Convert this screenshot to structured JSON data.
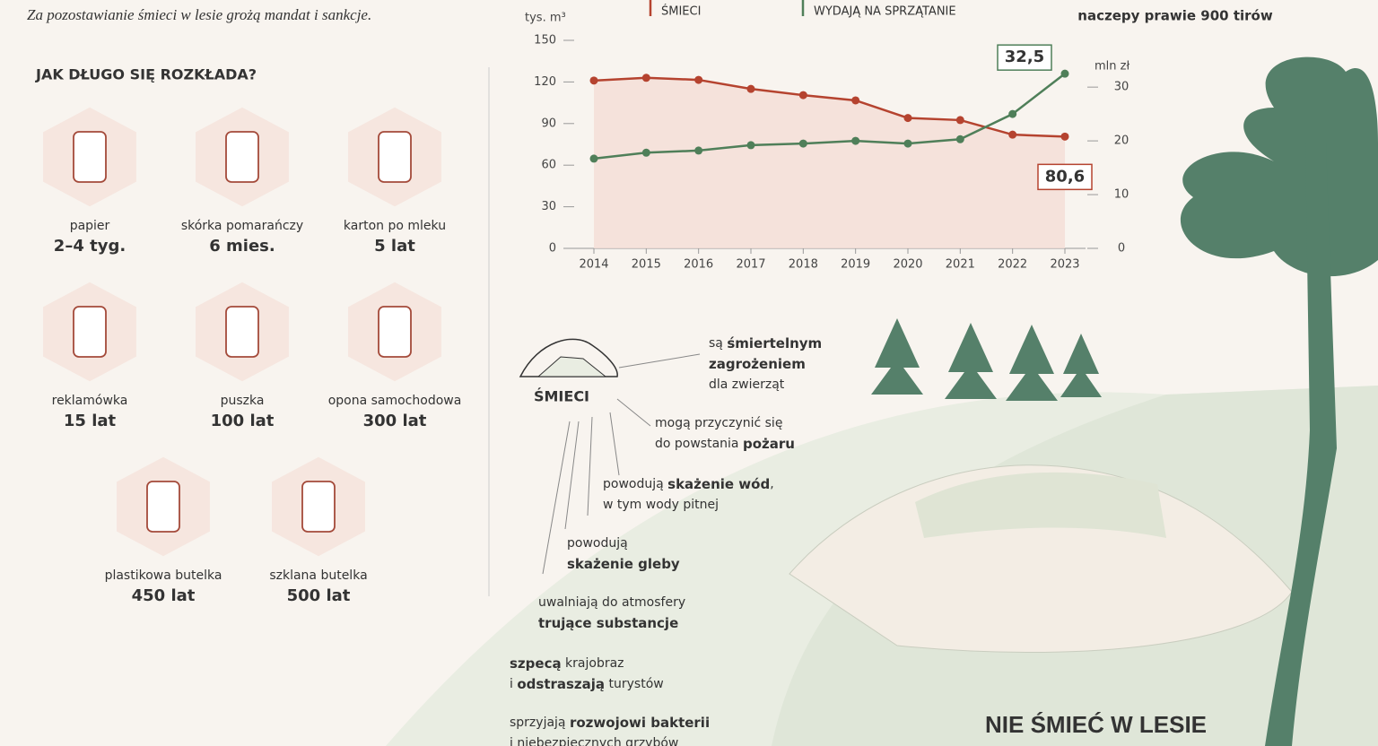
{
  "intro": "Za pozostawianie śmieci w lesie grożą mandat i sankcje.",
  "decomp_title": "JAK DŁUGO SIĘ ROZKŁADA?",
  "items": [
    {
      "name": "papier",
      "time": "2–4 tyg."
    },
    {
      "name": "skórka pomarańczy",
      "time": "6 mies."
    },
    {
      "name": "karton po mleku",
      "time": "5 lat"
    },
    {
      "name": "reklamówka",
      "time": "15 lat"
    },
    {
      "name": "puszka",
      "time": "100 lat"
    },
    {
      "name": "opona samochodowa",
      "time": "300 lat"
    },
    {
      "name": "plastikowa butelka",
      "time": "450 lat"
    },
    {
      "name": "szklana butelka",
      "time": "500 lat"
    }
  ],
  "top_right_note": "naczepy prawie 900 tirów",
  "chart_data": {
    "type": "line",
    "y_label": "tys. m³",
    "y2_label": "mln zł",
    "categories": [
      "2014",
      "2015",
      "2016",
      "2017",
      "2018",
      "2019",
      "2020",
      "2021",
      "2022",
      "2023"
    ],
    "series": [
      {
        "name": "ŚMIECI",
        "color": "#b5432f",
        "values": [
          121,
          123,
          121.5,
          115,
          110.5,
          106.7,
          94,
          92.5,
          82,
          80.6
        ],
        "value_labels": [
          null,
          null,
          null,
          null,
          null,
          null,
          null,
          null,
          null,
          "80,6"
        ]
      },
      {
        "name": "WYDAJĄ NA SPRZĄTANIE",
        "color": "#4f7f59",
        "axis": "y2",
        "values": [
          16.7,
          17.8,
          18.2,
          19.2,
          19.5,
          20,
          19.5,
          20.3,
          25,
          32.5
        ],
        "value_labels": [
          null,
          null,
          null,
          null,
          null,
          null,
          null,
          null,
          null,
          "32,5"
        ]
      }
    ],
    "ylim": [
      0,
      150
    ],
    "yticks": [
      0,
      30,
      60,
      90,
      120,
      150
    ],
    "y2lim": [
      0,
      38.7
    ],
    "y2ticks": [
      0,
      10,
      20,
      30
    ]
  },
  "effects_title": "ŚMIECI",
  "effects": [
    [
      [
        {
          "text": "są "
        },
        {
          "text": "śmiertelnym",
          "bold": true
        }
      ],
      [
        {
          "text": "zagrożeniem",
          "bold": true
        }
      ],
      [
        {
          "text": "dla zwierząt"
        }
      ]
    ],
    [
      [
        {
          "text": "mogą przyczynić się"
        }
      ],
      [
        {
          "text": "do powstania "
        },
        {
          "text": "pożaru",
          "bold": true
        }
      ]
    ],
    [
      [
        {
          "text": "powodują "
        },
        {
          "text": "skażenie wód",
          "bold": true
        },
        {
          "text": ","
        }
      ],
      [
        {
          "text": "w tym wody pitnej"
        }
      ]
    ],
    [
      [
        {
          "text": "powodują"
        }
      ],
      [
        {
          "text": "skażenie gleby",
          "bold": true
        }
      ]
    ],
    [
      [
        {
          "text": "uwalniają do atmosfery"
        }
      ],
      [
        {
          "text": "trujące substancje",
          "bold": true
        }
      ]
    ],
    [
      [
        {
          "text": "szpecą",
          "bold": true
        },
        {
          "text": " krajobraz"
        }
      ],
      [
        {
          "text": "i "
        },
        {
          "text": "odstraszają",
          "bold": true
        },
        {
          "text": " turystów"
        }
      ]
    ],
    [
      [
        {
          "text": "sprzyjają "
        },
        {
          "text": "rozwojowi bakterii",
          "bold": true
        }
      ],
      [
        {
          "text": "i niebezpiecznych grzybów"
        }
      ]
    ]
  ],
  "slogan": "NIE ŚMIEĆ W LESIE"
}
